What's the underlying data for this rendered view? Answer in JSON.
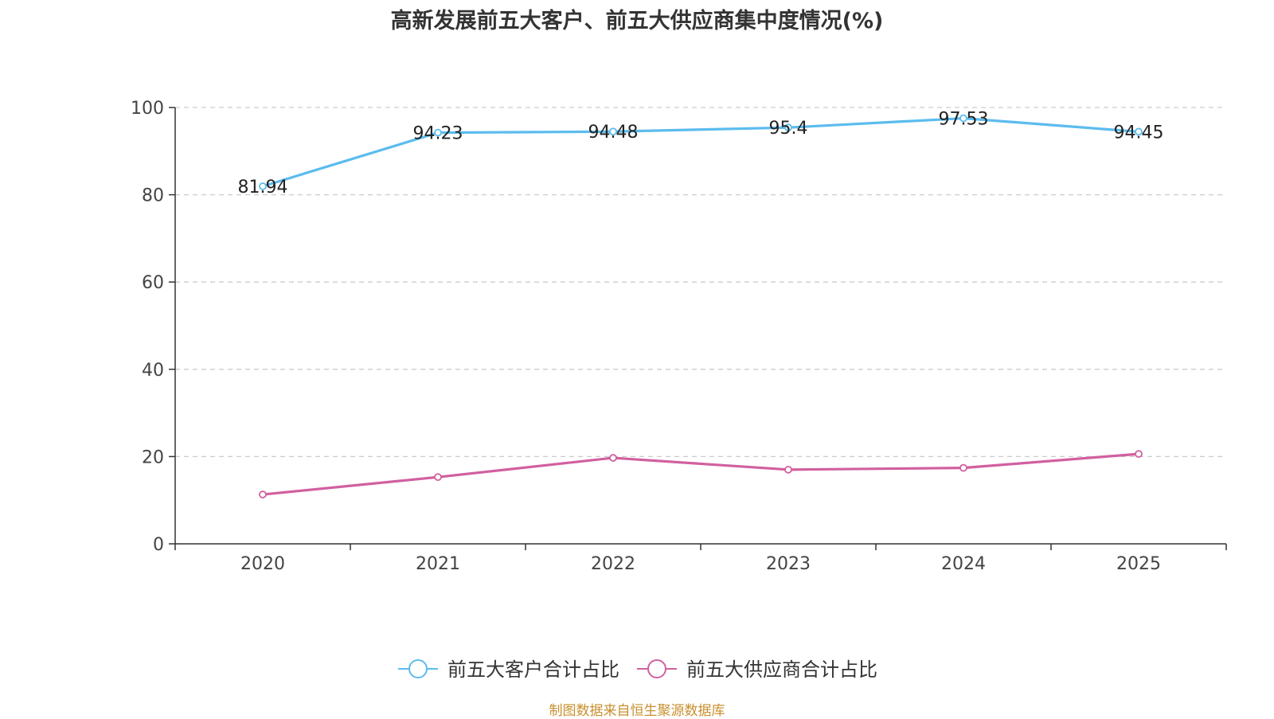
{
  "title": "高新发展前五大客户、前五大供应商集中度情况(%)",
  "source": "制图数据来自恒生聚源数据库",
  "chart_data": {
    "type": "line",
    "title": "高新发展前五大客户、前五大供应商集中度情况(%)",
    "xlabel": "",
    "ylabel": "",
    "categories": [
      "2020",
      "2021",
      "2022",
      "2023",
      "2024",
      "2025"
    ],
    "ylim": [
      0,
      100
    ],
    "yticks": [
      0,
      20,
      40,
      60,
      80,
      100
    ],
    "grid": true,
    "legend_position": "bottom",
    "series": [
      {
        "name": "前五大客户合计占比",
        "color": "#5bbcee",
        "values": [
          81.94,
          94.23,
          94.48,
          95.4,
          97.53,
          94.45
        ],
        "labels": [
          "81.94",
          "94.23",
          "94.48",
          "95.4",
          "97.53",
          "94.45"
        ]
      },
      {
        "name": "前五大供应商合计占比",
        "color": "#d1609f",
        "values": [
          11.3,
          15.3,
          19.7,
          17.0,
          17.4,
          20.6
        ],
        "labels": null
      }
    ]
  }
}
